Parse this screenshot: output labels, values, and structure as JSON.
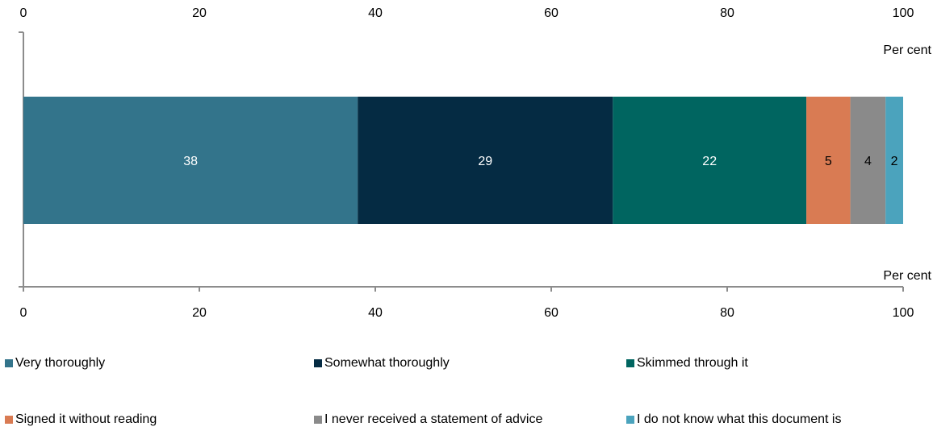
{
  "chart_data": {
    "type": "bar",
    "orientation": "horizontal",
    "stacked": true,
    "xlim": [
      0,
      100
    ],
    "ticks": [
      0,
      20,
      40,
      60,
      80,
      100
    ],
    "ticks_top": true,
    "ticks_bottom": true,
    "unit_label_top": "Per cent",
    "unit_label_bottom": "Per cent",
    "grid": false,
    "legend_position": "bottom",
    "series": [
      {
        "name": "Very thoroughly",
        "value": 38,
        "label": "38",
        "color": "#33748B",
        "label_color": "#FFFFFF"
      },
      {
        "name": "Somewhat thoroughly",
        "value": 29,
        "label": "29",
        "color": "#052B43",
        "label_color": "#FFFFFF"
      },
      {
        "name": "Skimmed through it",
        "value": 22,
        "label": "22",
        "color": "#006560",
        "label_color": "#FFFFFF"
      },
      {
        "name": "Signed it without reading",
        "value": 5,
        "label": "5",
        "color": "#D97B53",
        "label_color": "#000000"
      },
      {
        "name": "I never received a statement of advice",
        "value": 4,
        "label": "4",
        "color": "#8A8A8A",
        "label_color": "#000000"
      },
      {
        "name": "I do not know what this document is",
        "value": 2,
        "label": "2",
        "color": "#4BA3BD",
        "label_color": "#000000"
      }
    ]
  }
}
